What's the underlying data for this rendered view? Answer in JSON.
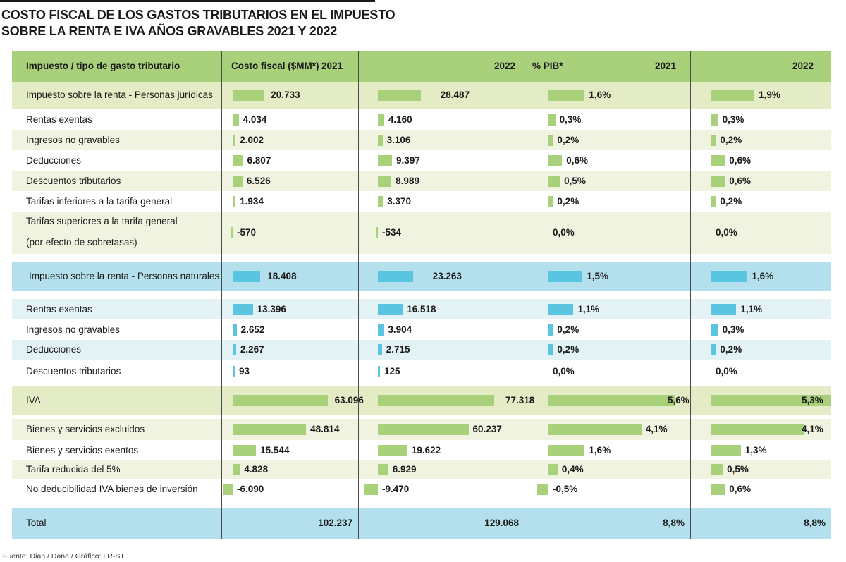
{
  "title_line1": "COSTO FISCAL DE LOS GASTOS TRIBUTARIOS EN EL IMPUESTO",
  "title_line2": "SOBRE LA RENTA E IVA AÑOS GRAVABLES 2021 Y 2022",
  "header": {
    "col_concept": "Impuesto / tipo de gasto tributario",
    "col_cost": "Costo fiscal ($MM*)",
    "cost_2021": "2021",
    "cost_2022": "2022",
    "col_pib": "% PIB*",
    "pib_2021": "2021",
    "pib_2022": "2022"
  },
  "source": "Fuente: Dian / Dane / Gráfico: LR-ST",
  "colors": {
    "header_green": "#a9d07a",
    "group1_bg": "#e3ecc4",
    "stripe_green": "#eff3e0",
    "bar_green": "#a9d07a",
    "group2_bg": "#b3e0ec",
    "stripe_blue": "#e3f2f4",
    "bar_blue": "#5bc5e1",
    "total_bg": "#b3e0ec"
  },
  "chart_data": {
    "type": "table",
    "columns": [
      "Costo fiscal ($MM*) 2021",
      "Costo fiscal ($MM*) 2022",
      "% PIB* 2021",
      "% PIB* 2022"
    ],
    "rows": [
      {
        "label": "Impuesto sobre la renta - Personas jurídicas",
        "kind": "group",
        "theme": "green",
        "cost_2021": 20733,
        "cost_2022": 28487,
        "pib_2021": 1.6,
        "pib_2022": 1.9,
        "text": [
          "20.733",
          "28.487",
          "1,6%",
          "1,9%"
        ]
      },
      {
        "label": "Rentas exentas",
        "kind": "item",
        "theme": "green",
        "cost_2021": 4034,
        "cost_2022": 4160,
        "pib_2021": 0.3,
        "pib_2022": 0.3,
        "text": [
          "4.034",
          "4.160",
          "0,3%",
          "0,3%"
        ]
      },
      {
        "label": "Ingresos no gravables",
        "kind": "item",
        "theme": "green",
        "cost_2021": 2002,
        "cost_2022": 3106,
        "pib_2021": 0.2,
        "pib_2022": 0.2,
        "text": [
          "2.002",
          "3.106",
          "0,2%",
          "0,2%"
        ]
      },
      {
        "label": "Deducciones",
        "kind": "item",
        "theme": "green",
        "cost_2021": 6807,
        "cost_2022": 9397,
        "pib_2021": 0.6,
        "pib_2022": 0.6,
        "text": [
          "6.807",
          "9.397",
          "0,6%",
          "0,6%"
        ]
      },
      {
        "label": "Descuentos tributarios",
        "kind": "item",
        "theme": "green",
        "cost_2021": 6526,
        "cost_2022": 8989,
        "pib_2021": 0.5,
        "pib_2022": 0.6,
        "text": [
          "6.526",
          "8.989",
          "0,5%",
          "0,6%"
        ]
      },
      {
        "label": "Tarifas inferiores a la tarifa general",
        "kind": "item",
        "theme": "green",
        "cost_2021": 1934,
        "cost_2022": 3370,
        "pib_2021": 0.2,
        "pib_2022": 0.2,
        "text": [
          "1.934",
          "3.370",
          "0,2%",
          "0,2%"
        ]
      },
      {
        "label": "Tarifas superiores a la tarifa general",
        "label2": "(por efecto de sobretasas)",
        "kind": "item",
        "theme": "green",
        "cost_2021": -570,
        "cost_2022": -534,
        "pib_2021": 0.0,
        "pib_2022": 0.0,
        "text": [
          "-570",
          "-534",
          "0,0%",
          "0,0%"
        ]
      },
      {
        "label": "Impuesto sobre la renta - Personas naturales",
        "kind": "group",
        "theme": "blue",
        "cost_2021": 18408,
        "cost_2022": 23263,
        "pib_2021": 1.5,
        "pib_2022": 1.6,
        "text": [
          "18.408",
          "23.263",
          "1,5%",
          "1,6%"
        ]
      },
      {
        "label": "Rentas exentas",
        "kind": "item",
        "theme": "blue",
        "cost_2021": 13396,
        "cost_2022": 16518,
        "pib_2021": 1.1,
        "pib_2022": 1.1,
        "text": [
          "13.396",
          "16.518",
          "1,1%",
          "1,1%"
        ]
      },
      {
        "label": "Ingresos no gravables",
        "kind": "item",
        "theme": "blue",
        "cost_2021": 2652,
        "cost_2022": 3904,
        "pib_2021": 0.2,
        "pib_2022": 0.3,
        "text": [
          "2.652",
          "3.904",
          "0,2%",
          "0,3%"
        ]
      },
      {
        "label": "Deducciones",
        "kind": "item",
        "theme": "blue",
        "cost_2021": 2267,
        "cost_2022": 2715,
        "pib_2021": 0.2,
        "pib_2022": 0.2,
        "text": [
          "2.267",
          "2.715",
          "0,2%",
          "0,2%"
        ]
      },
      {
        "label": "Descuentos tributarios",
        "kind": "item",
        "theme": "blue",
        "cost_2021": 93,
        "cost_2022": 125,
        "pib_2021": 0.0,
        "pib_2022": 0.0,
        "text": [
          "93",
          "125",
          "0,0%",
          "0,0%"
        ]
      },
      {
        "label": "IVA",
        "kind": "group",
        "theme": "green",
        "cost_2021": 63096,
        "cost_2022": 77318,
        "pib_2021": 5.6,
        "pib_2022": 5.3,
        "text": [
          "63.096",
          "77.318",
          "5,6%",
          "5,3%"
        ]
      },
      {
        "label": "Bienes y servicios excluidos",
        "kind": "item",
        "theme": "green",
        "cost_2021": 48814,
        "cost_2022": 60237,
        "pib_2021": 4.1,
        "pib_2022": 4.1,
        "text": [
          "48.814",
          "60.237",
          "4,1%",
          "4,1%"
        ]
      },
      {
        "label": "Bienes y servicios exentos",
        "kind": "item",
        "theme": "green",
        "cost_2021": 15544,
        "cost_2022": 19622,
        "pib_2021": 1.6,
        "pib_2022": 1.3,
        "text": [
          "15.544",
          "19.622",
          "1,6%",
          "1,3%"
        ]
      },
      {
        "label": "Tarifa reducida del 5%",
        "kind": "item",
        "theme": "green",
        "cost_2021": 4828,
        "cost_2022": 6929,
        "pib_2021": 0.4,
        "pib_2022": 0.5,
        "text": [
          "4.828",
          "6.929",
          "0,4%",
          "0,5%"
        ]
      },
      {
        "label": "No deducibilidad IVA bienes de inversión",
        "kind": "item",
        "theme": "green",
        "cost_2021": -6090,
        "cost_2022": -9470,
        "pib_2021": -0.5,
        "pib_2022": 0.6,
        "text": [
          "-6.090",
          "-9.470",
          "-0,5%",
          "0,6%"
        ]
      },
      {
        "label": "Total",
        "kind": "total",
        "theme": "blue",
        "cost_2021": 102237,
        "cost_2022": 129068,
        "pib_2021": 8.8,
        "pib_2022": 8.8,
        "text": [
          "102.237",
          "129.068",
          "8,8%",
          "8,8%"
        ]
      }
    ]
  }
}
